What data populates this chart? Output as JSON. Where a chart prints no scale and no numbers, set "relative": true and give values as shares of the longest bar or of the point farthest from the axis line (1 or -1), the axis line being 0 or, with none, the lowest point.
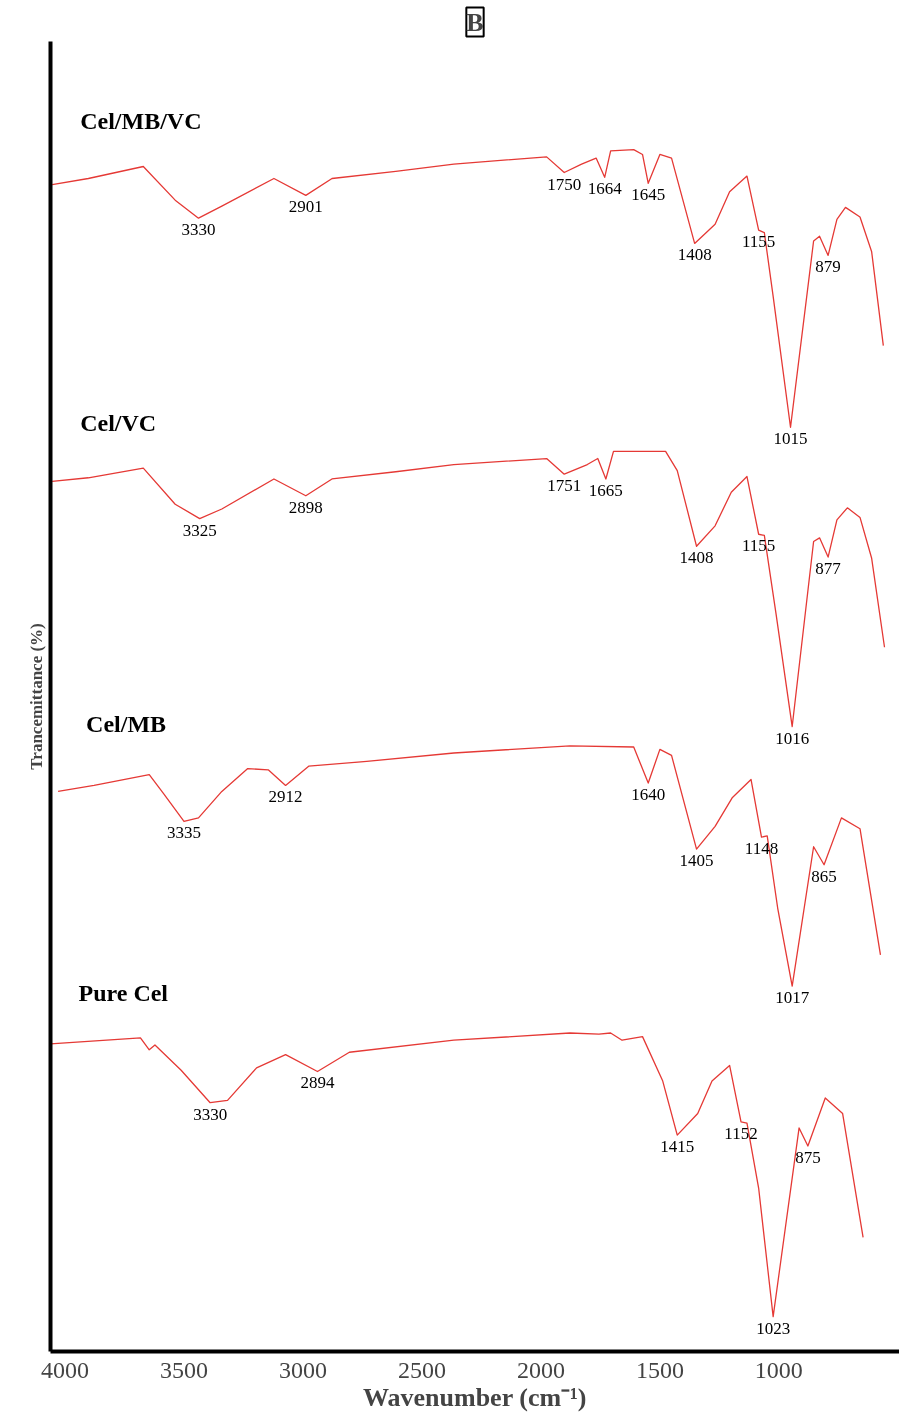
{
  "chart_data": {
    "type": "line",
    "title": "B",
    "xlabel": "Wavenumber (cm⁻¹)",
    "ylabel": "Trancemittance (%)",
    "relative": true,
    "tick_labels": "x",
    "grid": false,
    "legend": false,
    "marker": "none",
    "line_style": "solid",
    "xlim": [
      4061,
      493
    ],
    "xticks": [
      4000,
      3500,
      3000,
      2500,
      2000,
      1500,
      1000
    ],
    "series": [
      {
        "name": "Cel/MB/VC",
        "color": "#e53935",
        "x": [
          4054,
          3902,
          3671,
          3537,
          3439,
          3341,
          3122,
          2988,
          2878,
          2610,
          2366,
          1976,
          1902,
          1829,
          1768,
          1732,
          1707,
          1610,
          1573,
          1549,
          1500,
          1451,
          1354,
          1268,
          1207,
          1134,
          1085,
          1061,
          1024,
          951,
          854,
          829,
          793,
          756,
          720,
          659,
          610,
          561
        ],
        "values": [
          0.971,
          0.976,
          0.986,
          0.958,
          0.943,
          0.953,
          0.976,
          0.962,
          0.976,
          0.982,
          0.988,
          0.994,
          0.981,
          0.988,
          0.993,
          0.977,
          0.999,
          1.0,
          0.996,
          0.972,
          0.996,
          0.993,
          0.922,
          0.938,
          0.965,
          0.978,
          0.933,
          0.931,
          0.878,
          0.769,
          0.924,
          0.928,
          0.912,
          0.942,
          0.952,
          0.944,
          0.915,
          0.837
        ]
      },
      {
        "name": "Cel/VC",
        "color": "#e53935",
        "x": [
          4054,
          3902,
          3671,
          3537,
          3434,
          3341,
          3122,
          2988,
          2878,
          2610,
          2366,
          1976,
          1902,
          1805,
          1761,
          1727,
          1695,
          1476,
          1427,
          1346,
          1268,
          1200,
          1134,
          1085,
          1061,
          1012,
          944,
          854,
          829,
          793,
          756,
          712,
          659,
          610,
          556
        ],
        "values": [
          0.724,
          0.727,
          0.735,
          0.705,
          0.693,
          0.701,
          0.726,
          0.712,
          0.726,
          0.732,
          0.738,
          0.743,
          0.73,
          0.738,
          0.743,
          0.726,
          0.749,
          0.749,
          0.733,
          0.67,
          0.687,
          0.715,
          0.728,
          0.68,
          0.679,
          0.614,
          0.52,
          0.674,
          0.677,
          0.661,
          0.692,
          0.702,
          0.694,
          0.66,
          0.586
        ]
      },
      {
        "name": "Cel/MB",
        "color": "#e53935",
        "x": [
          4029,
          3878,
          3646,
          3585,
          3500,
          3439,
          3341,
          3232,
          3146,
          3073,
          2976,
          2732,
          2366,
          1878,
          1610,
          1549,
          1500,
          1451,
          1346,
          1268,
          1195,
          1117,
          1073,
          1049,
          1005,
          944,
          854,
          810,
          737,
          659,
          573
        ],
        "values": [
          0.466,
          0.471,
          0.48,
          0.464,
          0.441,
          0.444,
          0.466,
          0.485,
          0.484,
          0.471,
          0.487,
          0.491,
          0.498,
          0.504,
          0.503,
          0.473,
          0.501,
          0.496,
          0.418,
          0.437,
          0.461,
          0.476,
          0.428,
          0.429,
          0.369,
          0.304,
          0.42,
          0.405,
          0.444,
          0.435,
          0.33
        ]
      },
      {
        "name": "Pure Cel",
        "color": "#e53935",
        "x": [
          4061,
          3683,
          3646,
          3622,
          3512,
          3390,
          3317,
          3195,
          3073,
          2939,
          2805,
          2366,
          1878,
          1756,
          1707,
          1659,
          1573,
          1488,
          1427,
          1341,
          1281,
          1207,
          1159,
          1134,
          1085,
          1024,
          915,
          878,
          805,
          732,
          646
        ],
        "values": [
          0.256,
          0.261,
          0.251,
          0.255,
          0.234,
          0.207,
          0.209,
          0.236,
          0.247,
          0.233,
          0.249,
          0.259,
          0.265,
          0.264,
          0.265,
          0.259,
          0.262,
          0.225,
          0.18,
          0.198,
          0.225,
          0.238,
          0.191,
          0.19,
          0.136,
          0.029,
          0.186,
          0.171,
          0.211,
          0.198,
          0.095
        ]
      }
    ],
    "annotations": [
      {
        "text": "3330",
        "x": 3439,
        "y": 0.943
      },
      {
        "text": "2901",
        "x": 2988,
        "y": 0.962
      },
      {
        "text": "1750",
        "x": 1902,
        "y": 0.981
      },
      {
        "text": "1664",
        "x": 1732,
        "y": 0.977
      },
      {
        "text": "1645",
        "x": 1549,
        "y": 0.972
      },
      {
        "text": "1408",
        "x": 1354,
        "y": 0.922
      },
      {
        "text": "1155",
        "x": 1085,
        "y": 0.933
      },
      {
        "text": "879",
        "x": 793,
        "y": 0.912
      },
      {
        "text": "1015",
        "x": 951,
        "y": 0.769
      },
      {
        "text": "3325",
        "x": 3434,
        "y": 0.693
      },
      {
        "text": "2898",
        "x": 2988,
        "y": 0.712
      },
      {
        "text": "1751",
        "x": 1902,
        "y": 0.73
      },
      {
        "text": "1665",
        "x": 1727,
        "y": 0.726
      },
      {
        "text": "1408",
        "x": 1346,
        "y": 0.67
      },
      {
        "text": "1155",
        "x": 1085,
        "y": 0.68
      },
      {
        "text": "877",
        "x": 793,
        "y": 0.661
      },
      {
        "text": "1016",
        "x": 944,
        "y": 0.52
      },
      {
        "text": "3335",
        "x": 3500,
        "y": 0.441
      },
      {
        "text": "2912",
        "x": 3073,
        "y": 0.471
      },
      {
        "text": "1640",
        "x": 1549,
        "y": 0.473
      },
      {
        "text": "1405",
        "x": 1346,
        "y": 0.418
      },
      {
        "text": "1148",
        "x": 1073,
        "y": 0.428
      },
      {
        "text": "865",
        "x": 810,
        "y": 0.405
      },
      {
        "text": "1017",
        "x": 944,
        "y": 0.304
      },
      {
        "text": "3330",
        "x": 3390,
        "y": 0.207
      },
      {
        "text": "2894",
        "x": 2939,
        "y": 0.233
      },
      {
        "text": "1415",
        "x": 1427,
        "y": 0.18
      },
      {
        "text": "1152",
        "x": 1159,
        "y": 0.191
      },
      {
        "text": "875",
        "x": 878,
        "y": 0.171
      },
      {
        "text": "1023",
        "x": 1024,
        "y": 0.029
      }
    ]
  }
}
